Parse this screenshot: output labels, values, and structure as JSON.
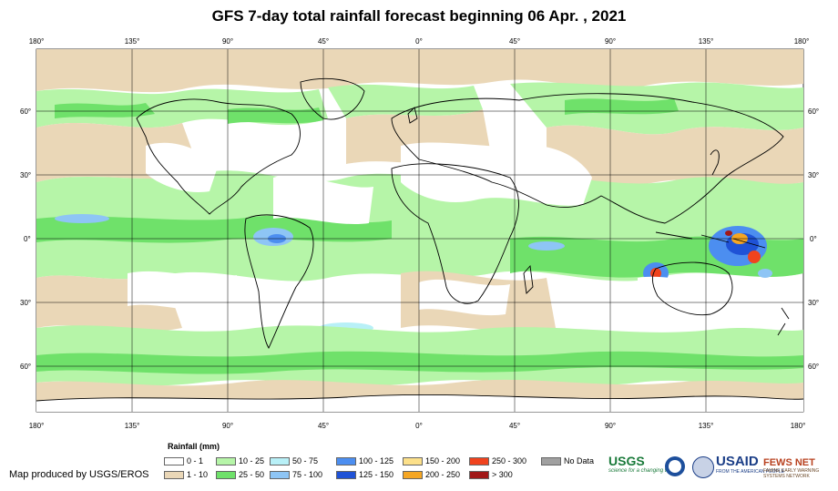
{
  "title": "GFS 7-day total rainfall forecast beginning 06 Apr. , 2021",
  "longitude_labels": [
    "180°",
    "135°",
    "90°",
    "45°",
    "0°",
    "45°",
    "90°",
    "135°",
    "180°"
  ],
  "latitude_labels": [
    "60°",
    "30°",
    "0°",
    "30°",
    "60°"
  ],
  "legend": {
    "title": "Rainfall (mm)",
    "items": [
      {
        "label": "0 - 1",
        "color": "#ffffff"
      },
      {
        "label": "1 - 10",
        "color": "#ead7b7"
      },
      {
        "label": "10 - 25",
        "color": "#b6f5a8"
      },
      {
        "label": "25 - 50",
        "color": "#6fe16a"
      },
      {
        "label": "50 - 75",
        "color": "#b8f0f7"
      },
      {
        "label": "75 - 100",
        "color": "#8ec5f5"
      },
      {
        "label": "100 - 125",
        "color": "#4c8ef0"
      },
      {
        "label": "125 - 150",
        "color": "#1f52d6"
      },
      {
        "label": "150 - 200",
        "color": "#fce08a"
      },
      {
        "label": "200 - 250",
        "color": "#f5a623"
      },
      {
        "label": "250 - 300",
        "color": "#f0431e"
      },
      {
        "label": "> 300",
        "color": "#a11818"
      },
      {
        "label": "No Data",
        "color": "#a0a0a0"
      }
    ]
  },
  "credit": "Map produced by USGS/EROS",
  "logos": {
    "usgs": "USGS",
    "usgs_tagline": "science for a changing world",
    "usaid": "USAID",
    "usaid_tagline": "FROM THE AMERICAN PEOPLE",
    "fews": "FEWS NET",
    "fews_tagline": "FAMINE EARLY WARNING SYSTEMS NETWORK"
  }
}
